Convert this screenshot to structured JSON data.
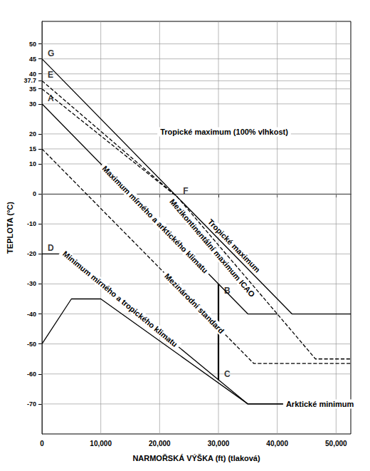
{
  "chart_data": {
    "type": "line",
    "xlabel": "NARMOŘSKÁ VÝŠKA (ft) (tlaková)",
    "ylabel": "TEPLOTA (°C)",
    "xlim": [
      0,
      52500
    ],
    "ylim": [
      -80,
      57.5
    ],
    "xticks": [
      0,
      {
        "value": 10000,
        "label": "10,000"
      },
      {
        "value": 20000,
        "label": "20,000"
      },
      {
        "value": 30000,
        "label": "30,000"
      },
      {
        "value": 40000,
        "label": "40,000"
      },
      {
        "value": 50000,
        "label": "50,000"
      }
    ],
    "yticks": [
      -70,
      -60,
      -50,
      -40,
      -30,
      -20,
      -10,
      0,
      10,
      15,
      20,
      30,
      35,
      37.7,
      40,
      45,
      50
    ],
    "grid": true,
    "series": [
      {
        "name": "Tropické maximum",
        "color": "#000000",
        "line_style": "solid",
        "x": [
          0,
          42500,
          52500
        ],
        "values": [
          45,
          -40,
          -40
        ]
      },
      {
        "name": "Mezikontinentální maximum ICAO",
        "color": "#000000",
        "line_style": "dashed",
        "x": [
          0,
          23000,
          40000,
          46500,
          52500
        ],
        "values": [
          37.7,
          -1,
          -40,
          -55,
          -55
        ]
      },
      {
        "name": "Tropické maximum (100% vlhkost)",
        "color": "#000000",
        "line_style": "dashed",
        "x": [
          0,
          23000
        ],
        "values": [
          35,
          -1
        ]
      },
      {
        "name": "Maximum mírného a arktického klimatu",
        "color": "#000000",
        "line_style": "solid",
        "x": [
          0,
          35000,
          40000
        ],
        "values": [
          30,
          -40,
          -40
        ]
      },
      {
        "name": "Mezinárodní standard",
        "color": "#000000",
        "line_style": "dashed",
        "x": [
          0,
          36000,
          52500
        ],
        "values": [
          15,
          -56.5,
          -56.5
        ]
      },
      {
        "name": "Minimum mírného a tropického klimatu",
        "color": "#000000",
        "line_style": "solid",
        "x": [
          0,
          4000,
          35000,
          52500
        ],
        "values": [
          -20,
          -20,
          -70,
          -70
        ]
      },
      {
        "name": "Arktické minimum",
        "color": "#000000",
        "line_style": "solid",
        "x": [
          0,
          5000,
          10000,
          35000,
          52500
        ],
        "values": [
          -50,
          -35,
          -35,
          -70,
          -70
        ]
      },
      {
        "color": "#000000",
        "line_style": "solid",
        "x": [
          30000,
          30000
        ],
        "values": [
          -30,
          -62
        ]
      }
    ],
    "annotations": [
      {
        "text": "G",
        "x": 0,
        "y": 45
      },
      {
        "text": "E",
        "x": 0,
        "y": 37.7
      },
      {
        "text": "A",
        "x": 0,
        "y": 30
      },
      {
        "text": "D",
        "x": 0,
        "y": -20
      },
      {
        "text": "F",
        "x": 23000,
        "y": -1
      },
      {
        "text": "B",
        "x": 30000,
        "y": -30
      },
      {
        "text": "C",
        "x": 30000,
        "y": -62
      }
    ]
  }
}
